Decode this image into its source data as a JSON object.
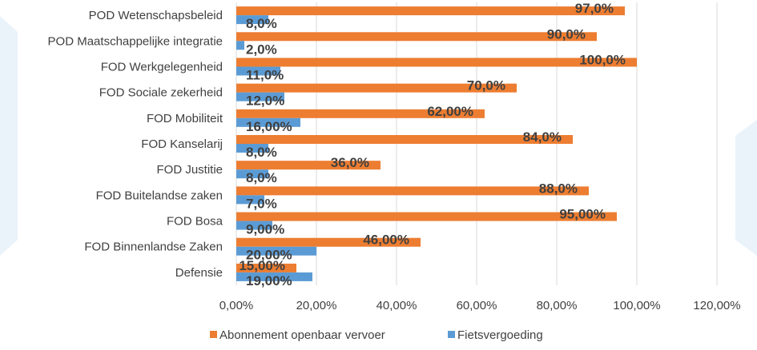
{
  "chart_data": {
    "type": "bar",
    "orientation": "horizontal",
    "title": "",
    "xlabel": "",
    "ylabel": "",
    "categories": [
      "POD Wetenschapsbeleid",
      "POD Maatschappelijke integratie",
      "FOD Werkgelegenheid",
      "FOD Sociale zekerheid",
      "FOD Mobiliteit",
      "FOD Kanselarij",
      "FOD Justitie",
      "FOD Buitelandse zaken",
      "FOD Bosa",
      "FOD Binnenlandse Zaken",
      "Defensie"
    ],
    "series": [
      {
        "name": "Abonnement openbaar vervoer",
        "color": "#ED7D31",
        "values": [
          97,
          90,
          100,
          70,
          62,
          84,
          36,
          88,
          95,
          46,
          15
        ],
        "labels": [
          "97,0%",
          "90,0%",
          "100,0%",
          "70,0%",
          "62,00%",
          "84,0%",
          "36,0%",
          "88,0%",
          "95,00%",
          "46,00%",
          "15,00%"
        ]
      },
      {
        "name": "Fietsvergoeding",
        "color": "#5B9BD5",
        "values": [
          8,
          2,
          11,
          12,
          16,
          8,
          8,
          7,
          9,
          20,
          19
        ],
        "labels": [
          "8,0%",
          "2,0%",
          "11,0%",
          "12,0%",
          "16,00%",
          "8,0%",
          "8,0%",
          "7,0%",
          "9,00%",
          "20,00%",
          "19,00%"
        ]
      }
    ],
    "xlim": [
      0,
      120
    ],
    "xticks": [
      0,
      20,
      40,
      60,
      80,
      100,
      120
    ],
    "xtick_labels": [
      "0,00%",
      "20,00%",
      "40,00%",
      "60,00%",
      "80,00%",
      "100,00%",
      "120,00%"
    ],
    "grid": true,
    "legend": "bottom"
  }
}
